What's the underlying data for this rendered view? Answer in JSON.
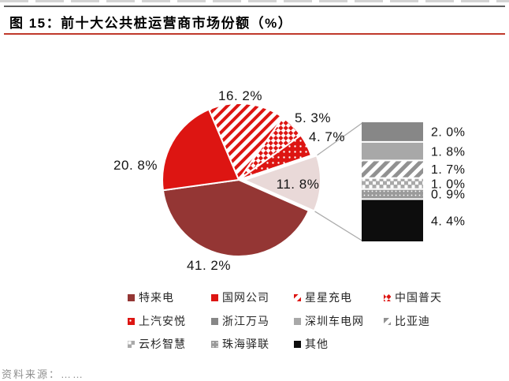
{
  "header": {
    "title": "图 15：前十大公共桩运营商市场份额（%）"
  },
  "footer": {
    "source": "资料来源：……"
  },
  "colors": {
    "accent_red": "#DD1512",
    "dark_red": "#943634",
    "group_pink": "#E9D9D8",
    "gray_dark": "#878787",
    "gray_mid": "#A8A8A8",
    "black": "#0D0D0D",
    "title_underline_red": "#C0392B",
    "top_rule_gray": "#606060",
    "connector_gray": "#ABABAB"
  },
  "chart_data": {
    "type": "pie",
    "variant": "bar-of-pie",
    "title": "前十大公共桩运营商市场份额（%）",
    "unit": "%",
    "start_angle_deg": -23,
    "pie_slices": [
      {
        "key": "star-charge",
        "name": "星星充电",
        "value": 16.2,
        "label": "16. 2%",
        "fill": "hatchRed"
      },
      {
        "key": "potevio",
        "name": "中国普天",
        "value": 5.3,
        "label": "5. 3%",
        "fill": "checkerRed"
      },
      {
        "key": "saic-anyo",
        "name": "上汽安悦",
        "value": 4.7,
        "label": "4. 7%",
        "fill": "dotsRed"
      },
      {
        "key": "group",
        "name": "",
        "value": 11.8,
        "label": "11. 8%",
        "fill": "#E9D9D8",
        "exploded": true,
        "breakout": true
      },
      {
        "key": "teld",
        "name": "特来电",
        "value": 41.2,
        "label": "41. 2%",
        "fill": "#943634"
      },
      {
        "key": "state-grid",
        "name": "国网公司",
        "value": 20.8,
        "label": "20. 8%",
        "fill": "#DD1512"
      }
    ],
    "breakout_total": 11.8,
    "breakout_segments": [
      {
        "key": "wanma",
        "name": "浙江万马",
        "value": 2.0,
        "label": "2. 0%",
        "fill": "#878787"
      },
      {
        "key": "car-energy-net",
        "name": "深圳车电网",
        "value": 1.8,
        "label": "1. 8%",
        "fill": "#A8A8A8"
      },
      {
        "key": "byd",
        "name": "比亚迪",
        "value": 1.7,
        "label": "1. 7%",
        "fill": "hatchGray"
      },
      {
        "key": "yunshan",
        "name": "云杉智慧",
        "value": 1.0,
        "label": "1. 0%",
        "fill": "checkerGray"
      },
      {
        "key": "yilian",
        "name": "珠海驿联",
        "value": 0.9,
        "label": "0. 9%",
        "fill": "denseGray"
      },
      {
        "key": "others",
        "name": "其他",
        "value": 4.4,
        "label": "4. 4%",
        "fill": "#0D0D0D"
      }
    ],
    "legend": [
      {
        "key": "teld",
        "label": "特来电",
        "fill": "#943634"
      },
      {
        "key": "state-grid",
        "label": "国网公司",
        "fill": "#DD1512"
      },
      {
        "key": "star-charge",
        "label": "星星充电",
        "fill": "hatchRed"
      },
      {
        "key": "potevio",
        "label": "中国普天",
        "fill": "checkerRed"
      },
      {
        "key": "saic-anyo",
        "label": "上汽安悦",
        "fill": "dotsRed"
      },
      {
        "key": "wanma",
        "label": "浙江万马",
        "fill": "#878787"
      },
      {
        "key": "car-energy-net",
        "label": "深圳车电网",
        "fill": "#A8A8A8"
      },
      {
        "key": "byd",
        "label": "比亚迪",
        "fill": "hatchGray"
      },
      {
        "key": "yunshan",
        "label": "云杉智慧",
        "fill": "checkerGray"
      },
      {
        "key": "yilian",
        "label": "珠海驿联",
        "fill": "denseGray"
      },
      {
        "key": "others",
        "label": "其他",
        "fill": "#0D0D0D"
      }
    ]
  }
}
